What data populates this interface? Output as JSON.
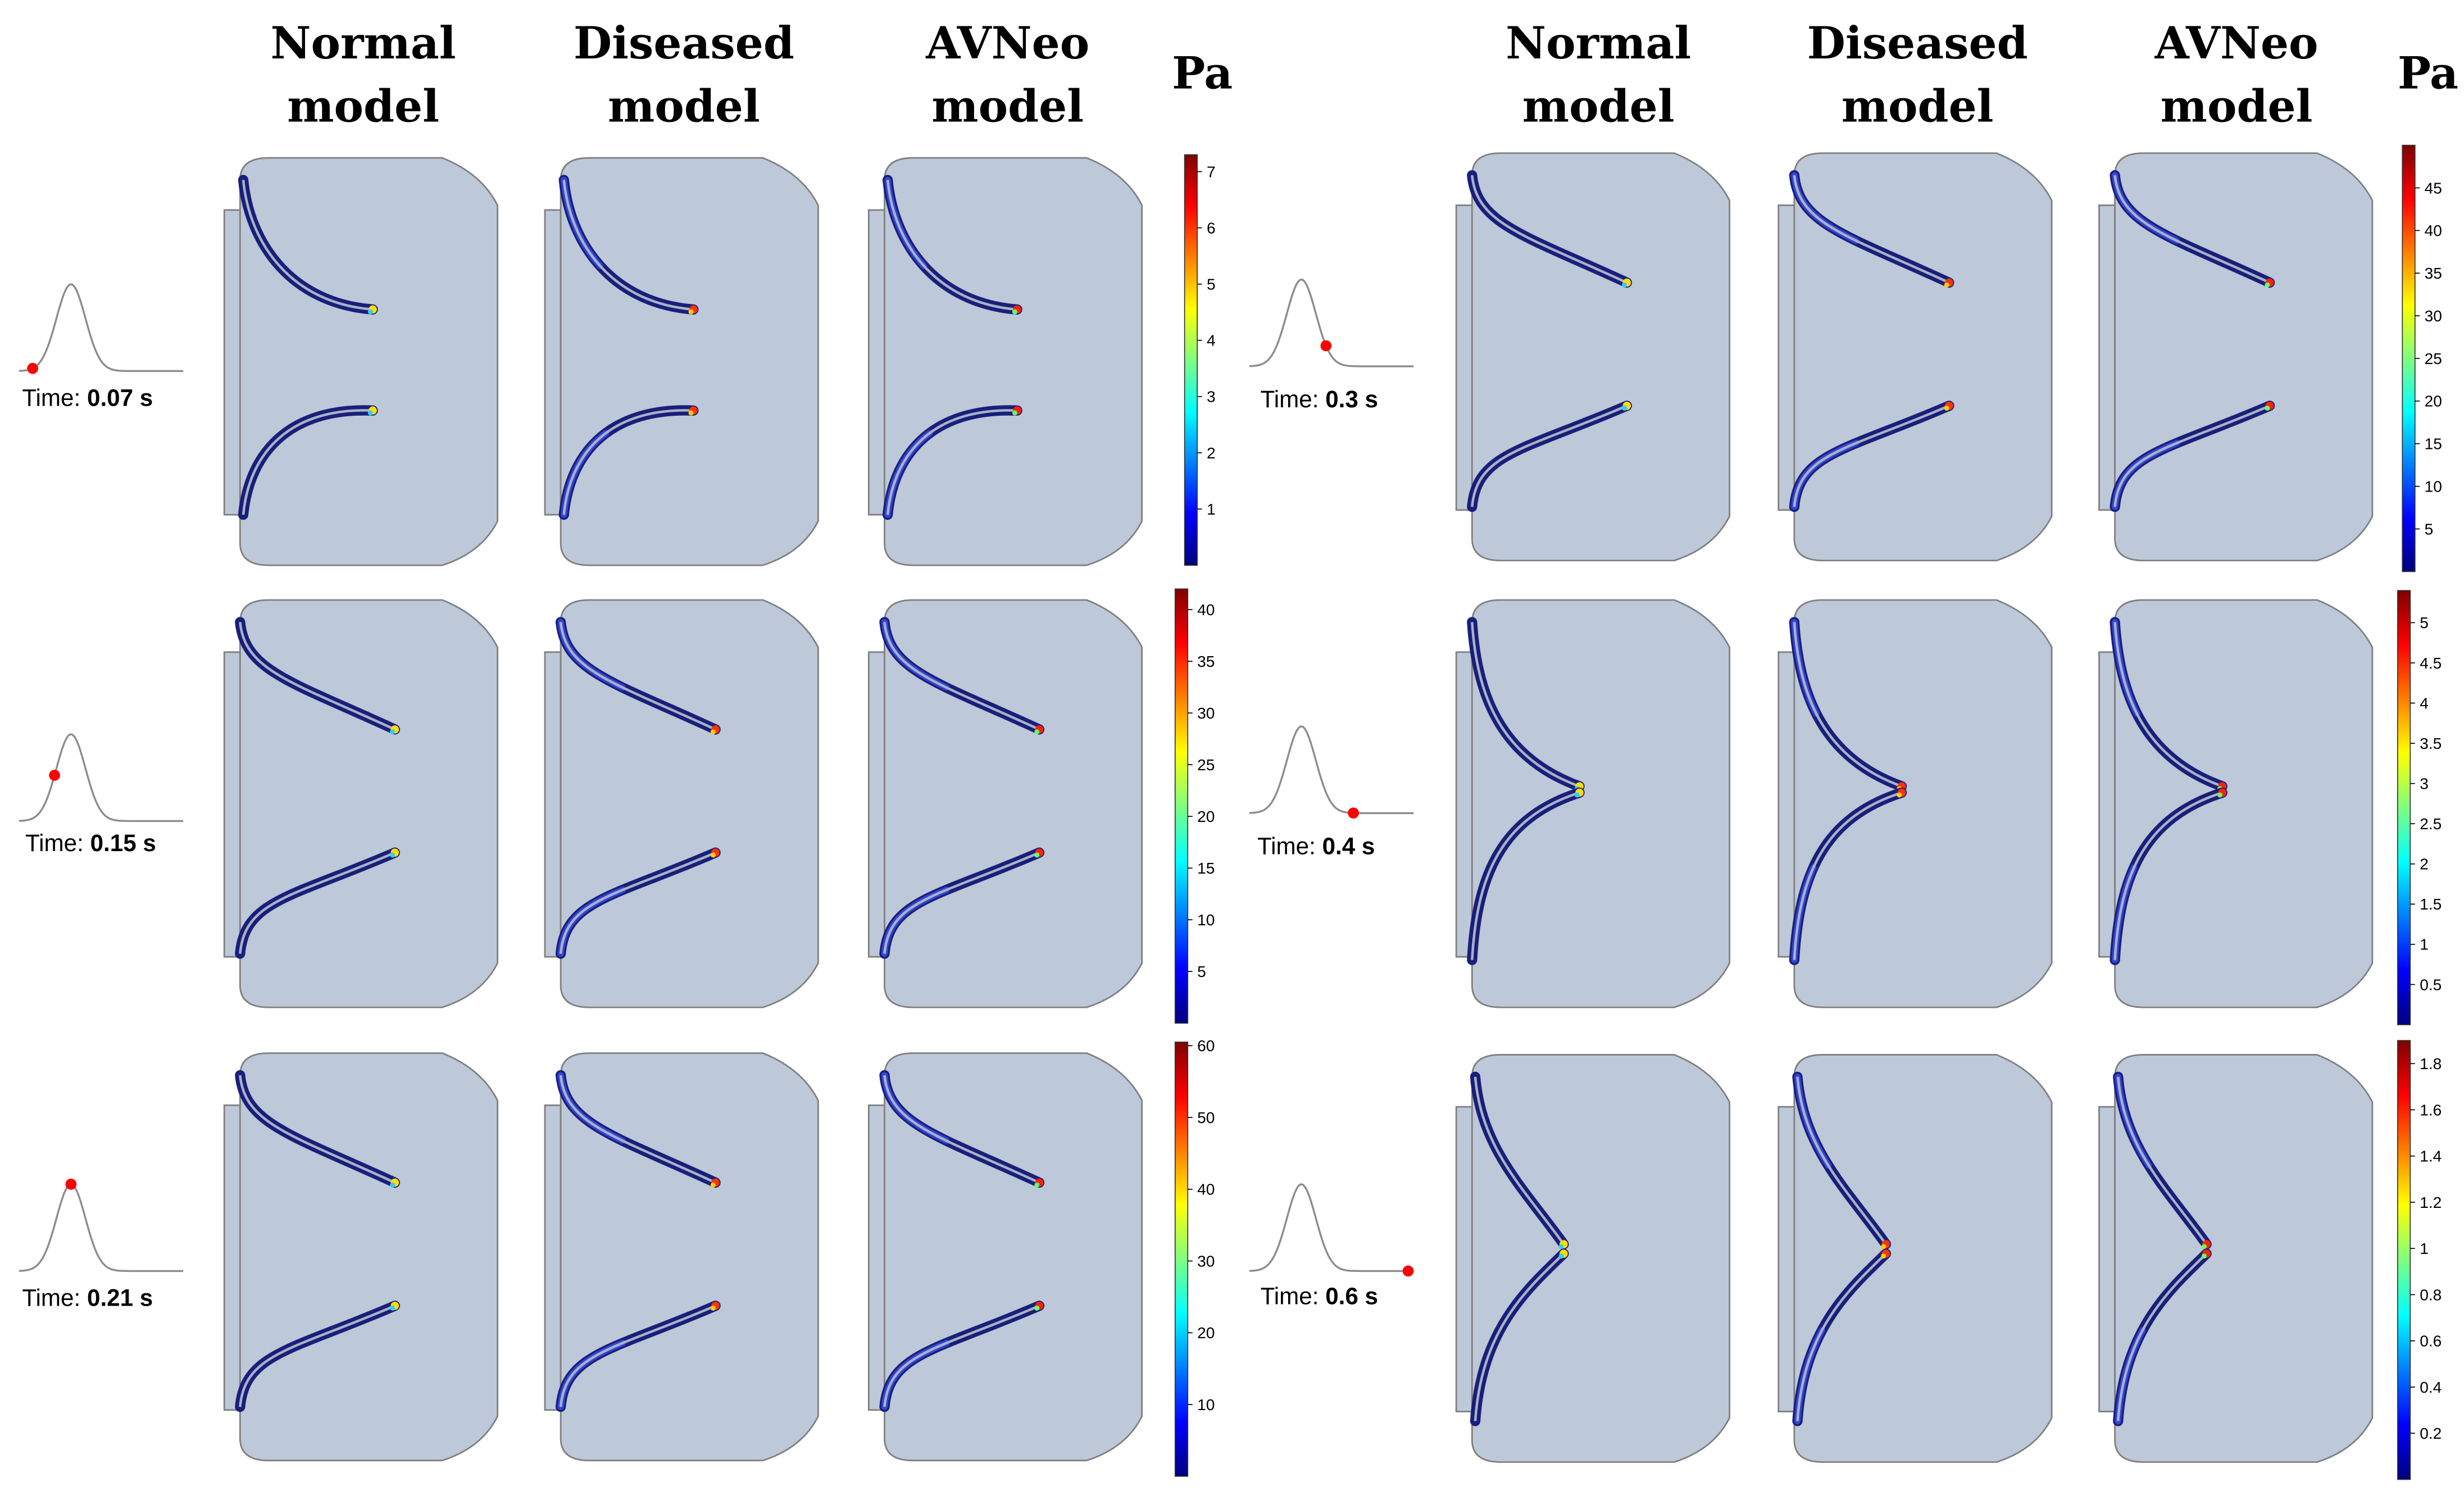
{
  "headers": {
    "left": [
      {
        "line1": "Normal",
        "line2": "model"
      },
      {
        "line1": "Diseased",
        "line2": "model"
      },
      {
        "line1": "AVNeo",
        "line2": "model"
      }
    ],
    "right": [
      {
        "line1": "Normal",
        "line2": "model"
      },
      {
        "line1": "Diseased",
        "line2": "model"
      },
      {
        "line1": "AVNeo",
        "line2": "model"
      }
    ],
    "unit": "Pa"
  },
  "colors": {
    "chamber_fill": "#bdc8d8",
    "chamber_edge": "#808080",
    "leaflet_dark": "#1a1f7a",
    "leaflet_mid": "#3346d6",
    "leaflet_core": "#a9b2c8",
    "marker": "#ff0000",
    "pulse_curve": "#8c8c8c"
  },
  "rows": [
    {
      "time_label": "Time: ",
      "time_value": "0.07 s",
      "phase": 0.07,
      "state": "c1",
      "colorbar": {
        "ticks": [
          "1",
          "2",
          "3",
          "4",
          "5",
          "6",
          "7"
        ],
        "max": 7.3
      }
    },
    {
      "time_label": "Time: ",
      "time_value": "0.15 s",
      "phase": 0.15,
      "state": "c2",
      "colorbar": {
        "ticks": [
          "5",
          "10",
          "15",
          "20",
          "25",
          "30",
          "35",
          "40"
        ],
        "max": 42
      }
    },
    {
      "time_label": "Time: ",
      "time_value": "0.21 s",
      "phase": 0.21,
      "state": "c2",
      "colorbar": {
        "ticks": [
          "10",
          "20",
          "30",
          "40",
          "50",
          "60"
        ],
        "max": 60.5
      }
    },
    {
      "time_label": "Time: ",
      "time_value": "0.3 s",
      "phase": 0.3,
      "state": "c2",
      "colorbar": {
        "ticks": [
          "5",
          "10",
          "15",
          "20",
          "25",
          "30",
          "35",
          "40",
          "45"
        ],
        "max": 50
      }
    },
    {
      "time_label": "Time: ",
      "time_value": "0.4 s",
      "phase": 0.4,
      "state": "c3",
      "colorbar": {
        "ticks": [
          "0.5",
          "1",
          "1.5",
          "2",
          "2.5",
          "3",
          "3.5",
          "4",
          "4.5",
          "5"
        ],
        "max": 5.4
      }
    },
    {
      "time_label": "Time: ",
      "time_value": "0.6 s",
      "phase": 0.6,
      "state": "c4",
      "colorbar": {
        "ticks": [
          "0.2",
          "0.4",
          "0.6",
          "0.8",
          "1",
          "1.2",
          "1.4",
          "1.6",
          "1.8"
        ],
        "max": 1.9
      }
    }
  ]
}
